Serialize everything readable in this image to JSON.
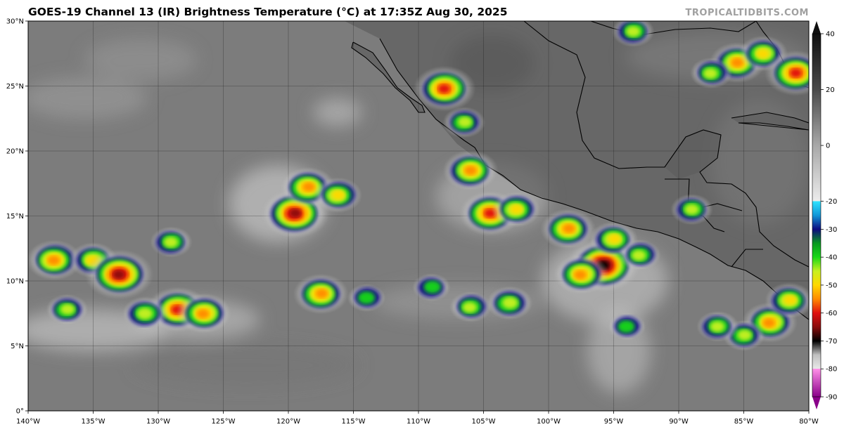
{
  "header": {
    "title": "GOES-19 Channel 13 (IR) Brightness Temperature (°C) at 17:35Z Aug 30, 2025",
    "credit": "TROPICALTIDBITS.COM"
  },
  "map": {
    "lon_range": [
      -140,
      -80
    ],
    "lat_range": [
      0,
      30
    ],
    "lat_ticks": [
      "0°",
      "5°N",
      "10°N",
      "15°N",
      "20°N",
      "25°N",
      "30°N"
    ],
    "lon_ticks": [
      "140°W",
      "135°W",
      "130°W",
      "125°W",
      "120°W",
      "115°W",
      "110°W",
      "105°W",
      "100°W",
      "95°W",
      "90°W",
      "85°W",
      "80°W"
    ],
    "grid": true,
    "background_color": "#7c7c7c",
    "land_color": "#5e5e5e",
    "coastline_color": "#000000"
  },
  "colorbar": {
    "ticks": [
      "40",
      "20",
      "0",
      "-20",
      "-30",
      "-40",
      "-50",
      "-60",
      "-70",
      "-80",
      "-90"
    ],
    "stops": [
      {
        "t": 40,
        "color": "#101010"
      },
      {
        "t": 20,
        "color": "#4a4a4a"
      },
      {
        "t": 0,
        "color": "#a8a8a8"
      },
      {
        "t": -19.9,
        "color": "#ececec"
      },
      {
        "t": -20,
        "color": "#2fe3ff"
      },
      {
        "t": -25,
        "color": "#1097d8"
      },
      {
        "t": -30,
        "color": "#0c0a80"
      },
      {
        "t": -35,
        "color": "#089820"
      },
      {
        "t": -40,
        "color": "#18d818"
      },
      {
        "t": -45,
        "color": "#c8f020"
      },
      {
        "t": -50,
        "color": "#ffd800"
      },
      {
        "t": -55,
        "color": "#ff8a00"
      },
      {
        "t": -60,
        "color": "#e01010"
      },
      {
        "t": -65,
        "color": "#8a0c0c"
      },
      {
        "t": -70,
        "color": "#000000"
      },
      {
        "t": -75,
        "color": "#c0c0c0"
      },
      {
        "t": -79.9,
        "color": "#e8e8e8"
      },
      {
        "t": -80,
        "color": "#ff90e8"
      },
      {
        "t": -90,
        "color": "#8a008a"
      }
    ]
  },
  "features": {
    "cloud_clusters": [
      {
        "lon": -119.5,
        "lat": 15.2,
        "temp_c": -65
      },
      {
        "lon": -118.5,
        "lat": 17.2,
        "temp_c": -55
      },
      {
        "lon": -116.2,
        "lat": 16.6,
        "temp_c": -50
      },
      {
        "lon": -128.5,
        "lat": 7.8,
        "temp_c": -60
      },
      {
        "lon": -126.5,
        "lat": 7.5,
        "temp_c": -55
      },
      {
        "lon": -131.0,
        "lat": 7.5,
        "temp_c": -48
      },
      {
        "lon": -137.0,
        "lat": 7.8,
        "temp_c": -45
      },
      {
        "lon": -138.0,
        "lat": 11.6,
        "temp_c": -55
      },
      {
        "lon": -135.0,
        "lat": 11.6,
        "temp_c": -50
      },
      {
        "lon": -133.0,
        "lat": 10.5,
        "temp_c": -65
      },
      {
        "lon": -129.0,
        "lat": 13.0,
        "temp_c": -45
      },
      {
        "lon": -117.5,
        "lat": 9.0,
        "temp_c": -55
      },
      {
        "lon": -114.0,
        "lat": 8.7,
        "temp_c": -40
      },
      {
        "lon": -108.0,
        "lat": 24.8,
        "temp_c": -60
      },
      {
        "lon": -106.5,
        "lat": 22.2,
        "temp_c": -45
      },
      {
        "lon": -106.0,
        "lat": 18.5,
        "temp_c": -55
      },
      {
        "lon": -104.5,
        "lat": 15.2,
        "temp_c": -60
      },
      {
        "lon": -102.5,
        "lat": 15.5,
        "temp_c": -50
      },
      {
        "lon": -95.8,
        "lat": 11.2,
        "temp_c": -70
      },
      {
        "lon": -97.5,
        "lat": 10.5,
        "temp_c": -55
      },
      {
        "lon": -95.0,
        "lat": 13.2,
        "temp_c": -50
      },
      {
        "lon": -98.5,
        "lat": 14.0,
        "temp_c": -55
      },
      {
        "lon": -93.0,
        "lat": 12.0,
        "temp_c": -45
      },
      {
        "lon": -89.0,
        "lat": 15.5,
        "temp_c": -45
      },
      {
        "lon": -94.0,
        "lat": 6.5,
        "temp_c": -42
      },
      {
        "lon": -85.5,
        "lat": 26.8,
        "temp_c": -55
      },
      {
        "lon": -83.5,
        "lat": 27.5,
        "temp_c": -50
      },
      {
        "lon": -87.5,
        "lat": 26.0,
        "temp_c": -45
      },
      {
        "lon": -93.5,
        "lat": 29.2,
        "temp_c": -45
      },
      {
        "lon": -83.0,
        "lat": 6.8,
        "temp_c": -55
      },
      {
        "lon": -81.5,
        "lat": 8.5,
        "temp_c": -50
      },
      {
        "lon": -103.0,
        "lat": 8.3,
        "temp_c": -48
      },
      {
        "lon": -106.0,
        "lat": 8.0,
        "temp_c": -45
      },
      {
        "lon": -109.0,
        "lat": 9.5,
        "temp_c": -40
      },
      {
        "lon": -85.0,
        "lat": 5.8,
        "temp_c": -45
      },
      {
        "lon": -87.0,
        "lat": 6.5,
        "temp_c": -45
      },
      {
        "lon": -81.0,
        "lat": 26.0,
        "temp_c": -60
      }
    ]
  }
}
